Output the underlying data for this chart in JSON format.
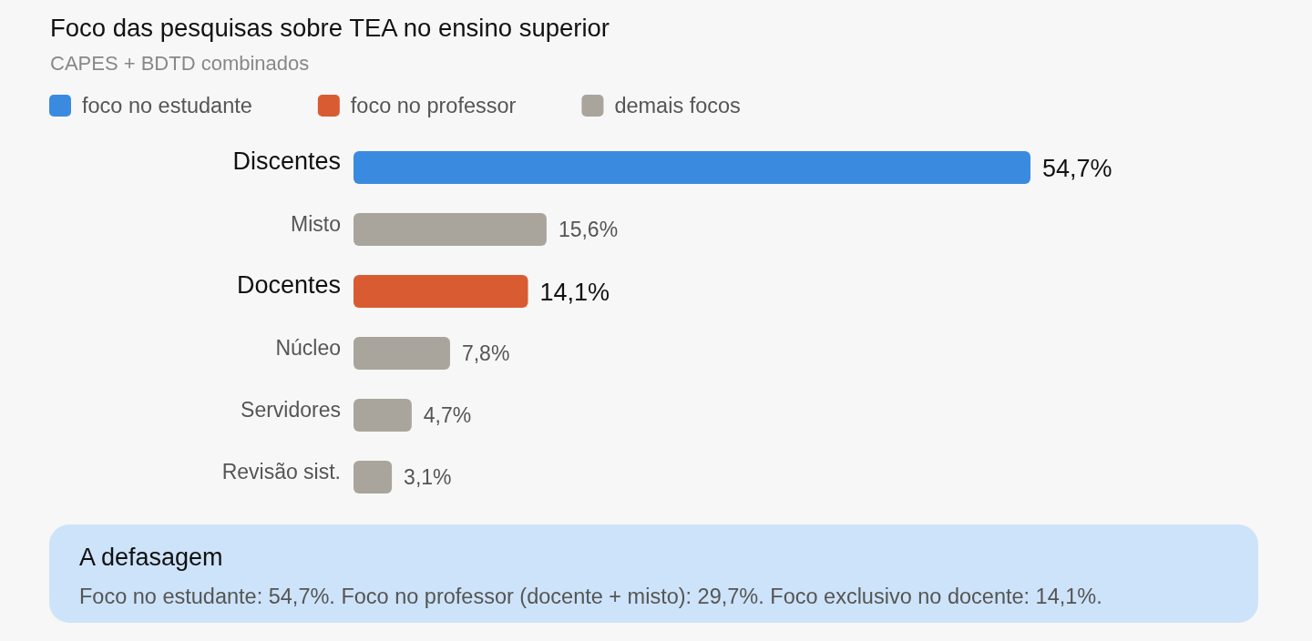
{
  "chart_data": {
    "type": "bar",
    "orientation": "horizontal",
    "stacked": true,
    "title": "Foco das pesquisas sobre TEA no ensino superior",
    "subtitle": "CAPES + BDTD combinados",
    "categories": [
      "Discentes",
      "Misto",
      "Docentes",
      "Núcleo",
      "Servidores",
      "Revisão sist."
    ],
    "series": [
      {
        "name": "foco no estudante",
        "color": "#3a8be0",
        "values": [
          54.7,
          null,
          null,
          null,
          null,
          null
        ],
        "value_labels": [
          "54,7%",
          null,
          null,
          null,
          null,
          null
        ]
      },
      {
        "name": "foco no professor",
        "color": "#d95b32",
        "values": [
          null,
          null,
          14.1,
          null,
          null,
          null
        ],
        "value_labels": [
          null,
          null,
          "14,1%",
          null,
          null,
          null
        ]
      },
      {
        "name": "demais focos",
        "color": "#a9a59c",
        "values": [
          null,
          15.6,
          null,
          7.8,
          4.7,
          3.1
        ],
        "value_labels": [
          null,
          "15,6%",
          null,
          "7,8%",
          "4,7%",
          "3,1%"
        ]
      }
    ],
    "legend": "top left",
    "annotations": [
      "A defasagem",
      "Foco no estudante: 54,7%. Foco no professor (docente + misto): 29,7%. Foco exclusivo no docente: 14,1%."
    ]
  }
}
